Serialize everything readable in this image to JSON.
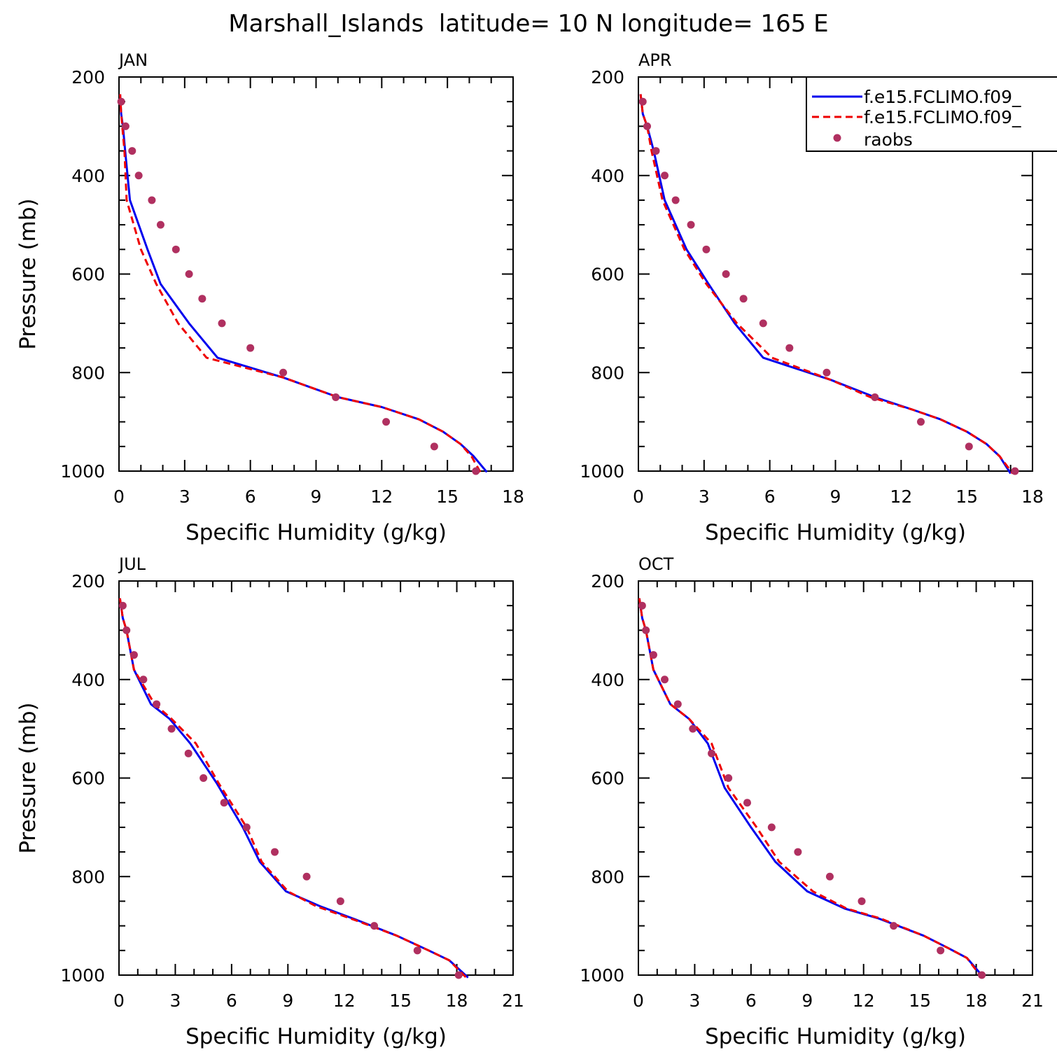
{
  "title": "Marshall_Islands  latitude= 10 N longitude= 165 E",
  "legend": {
    "entries": [
      "f.e15.FCLIMO.f09_",
      "f.e15.FCLIMO.f09_",
      "raobs"
    ],
    "colors": [
      "#0000ee",
      "#ee0000",
      "#b03060"
    ]
  },
  "chart_data": [
    {
      "type": "line",
      "panel": "JAN",
      "xlabel": "Specific Humidity (g/kg)",
      "ylabel": "Pressure (mb)",
      "xlim": [
        0,
        18
      ],
      "ylim": [
        1000,
        200
      ],
      "xticks": [
        0,
        3,
        6,
        9,
        12,
        15,
        18
      ],
      "yticks": [
        200,
        400,
        600,
        800,
        1000
      ],
      "series": [
        {
          "style": "solid",
          "x": [
            0.05,
            0.1,
            0.18,
            0.28,
            0.5,
            1.3,
            1.9,
            3.2,
            4.5,
            7.5,
            10,
            12,
            13.7,
            14.8,
            15.6,
            16.2,
            16.8
          ],
          "y": [
            235,
            275,
            300,
            350,
            450,
            550,
            620,
            700,
            770,
            810,
            850,
            870,
            895,
            920,
            945,
            970,
            1002
          ]
        },
        {
          "style": "dashed",
          "x": [
            0.05,
            0.1,
            0.15,
            0.25,
            0.35,
            1.0,
            1.7,
            2.7,
            4.0,
            7.5,
            10,
            12,
            13.7,
            14.8,
            15.6,
            16.1,
            16.5
          ],
          "y": [
            235,
            275,
            300,
            350,
            450,
            550,
            620,
            700,
            770,
            810,
            850,
            870,
            895,
            920,
            945,
            970,
            1002
          ]
        },
        {
          "style": "markers",
          "x": [
            0.1,
            0.3,
            0.6,
            0.9,
            1.5,
            1.9,
            2.6,
            3.2,
            3.8,
            4.7,
            6.0,
            7.5,
            9.9,
            12.2,
            14.4,
            16.3
          ],
          "y": [
            250,
            300,
            350,
            400,
            450,
            500,
            550,
            600,
            650,
            700,
            750,
            800,
            850,
            900,
            950,
            1000
          ]
        }
      ]
    },
    {
      "type": "line",
      "panel": "APR",
      "xlabel": "Specific Humidity (g/kg)",
      "ylabel": "",
      "xlim": [
        0,
        18
      ],
      "ylim": [
        1000,
        200
      ],
      "xticks": [
        0,
        3,
        6,
        9,
        12,
        15,
        18
      ],
      "yticks": [
        200,
        400,
        600,
        800,
        1000
      ],
      "series": [
        {
          "style": "solid",
          "x": [
            0.1,
            0.2,
            0.4,
            0.7,
            1.2,
            2.2,
            3.2,
            4.4,
            5.7,
            8.8,
            10.8,
            12.5,
            13.8,
            15.0,
            15.9,
            16.5,
            17.0
          ],
          "y": [
            235,
            275,
            300,
            350,
            450,
            550,
            620,
            700,
            770,
            815,
            850,
            875,
            895,
            920,
            945,
            970,
            1005
          ]
        },
        {
          "style": "dashed",
          "x": [
            0.1,
            0.2,
            0.4,
            0.6,
            1.1,
            2.1,
            3.1,
            4.5,
            6.1,
            8.8,
            10.6,
            12.5,
            13.8,
            15.0,
            15.9,
            16.5,
            17.1
          ],
          "y": [
            235,
            275,
            300,
            350,
            450,
            550,
            620,
            700,
            770,
            815,
            850,
            875,
            895,
            920,
            945,
            970,
            1005
          ]
        },
        {
          "style": "markers",
          "x": [
            0.2,
            0.4,
            0.8,
            1.2,
            1.7,
            2.4,
            3.1,
            4.0,
            4.8,
            5.7,
            6.9,
            8.6,
            10.8,
            12.9,
            15.1,
            17.2
          ],
          "y": [
            250,
            300,
            350,
            400,
            450,
            500,
            550,
            600,
            650,
            700,
            750,
            800,
            850,
            900,
            950,
            1000
          ]
        }
      ]
    },
    {
      "type": "line",
      "panel": "JUL",
      "xlabel": "Specific Humidity (g/kg)",
      "ylabel": "Pressure (mb)",
      "xlim": [
        0,
        21
      ],
      "ylim": [
        1000,
        200
      ],
      "xticks": [
        0,
        3,
        6,
        9,
        12,
        15,
        18,
        21
      ],
      "yticks": [
        200,
        400,
        600,
        800,
        1000
      ],
      "series": [
        {
          "style": "solid",
          "x": [
            0.05,
            0.2,
            0.4,
            0.8,
            1.7,
            2.7,
            3.8,
            5.2,
            6.6,
            7.5,
            8.9,
            10.7,
            12.8,
            14.8,
            16.5,
            17.6,
            18.6
          ],
          "y": [
            235,
            275,
            300,
            380,
            450,
            480,
            530,
            610,
            700,
            770,
            830,
            860,
            890,
            920,
            950,
            970,
            1005
          ]
        },
        {
          "style": "dashed",
          "x": [
            0.05,
            0.2,
            0.4,
            0.8,
            1.9,
            2.8,
            4.1,
            5.3,
            6.8,
            7.6,
            9.0,
            10.5,
            12.7,
            14.8,
            16.5,
            17.6,
            18.5
          ],
          "y": [
            235,
            275,
            300,
            380,
            450,
            480,
            530,
            610,
            700,
            770,
            830,
            860,
            890,
            920,
            950,
            970,
            1005
          ]
        },
        {
          "style": "markers",
          "x": [
            0.2,
            0.4,
            0.8,
            1.3,
            2.0,
            2.8,
            3.7,
            4.5,
            5.6,
            6.8,
            8.3,
            10.0,
            11.8,
            13.6,
            15.9,
            18.1
          ],
          "y": [
            250,
            300,
            350,
            400,
            450,
            500,
            550,
            600,
            650,
            700,
            750,
            800,
            850,
            900,
            950,
            1000
          ]
        }
      ]
    },
    {
      "type": "line",
      "panel": "OCT",
      "xlabel": "Specific Humidity (g/kg)",
      "ylabel": "",
      "xlim": [
        0,
        21
      ],
      "ylim": [
        1000,
        200
      ],
      "xticks": [
        0,
        3,
        6,
        9,
        12,
        15,
        18,
        21
      ],
      "yticks": [
        200,
        400,
        600,
        800,
        1000
      ],
      "series": [
        {
          "style": "solid",
          "x": [
            0.05,
            0.2,
            0.4,
            0.8,
            1.7,
            2.7,
            3.7,
            4.6,
            6.0,
            7.3,
            9.0,
            11.0,
            12.8,
            15.2,
            16.5,
            17.5,
            18.4
          ],
          "y": [
            235,
            275,
            300,
            380,
            450,
            480,
            530,
            620,
            700,
            770,
            830,
            865,
            885,
            920,
            945,
            965,
            1005
          ]
        },
        {
          "style": "dashed",
          "x": [
            0.05,
            0.2,
            0.4,
            0.8,
            1.7,
            2.7,
            3.9,
            4.8,
            6.3,
            7.5,
            9.3,
            11.1,
            12.9,
            15.2,
            16.5,
            17.5,
            18.3
          ],
          "y": [
            235,
            275,
            300,
            380,
            450,
            480,
            530,
            620,
            700,
            770,
            830,
            865,
            885,
            920,
            945,
            965,
            1005
          ]
        },
        {
          "style": "markers",
          "x": [
            0.2,
            0.4,
            0.8,
            1.4,
            2.1,
            2.9,
            3.9,
            4.8,
            5.8,
            7.1,
            8.5,
            10.2,
            11.9,
            13.6,
            16.1,
            18.3
          ],
          "y": [
            250,
            300,
            350,
            400,
            450,
            500,
            550,
            600,
            650,
            700,
            750,
            800,
            850,
            900,
            950,
            1000
          ]
        }
      ]
    }
  ]
}
